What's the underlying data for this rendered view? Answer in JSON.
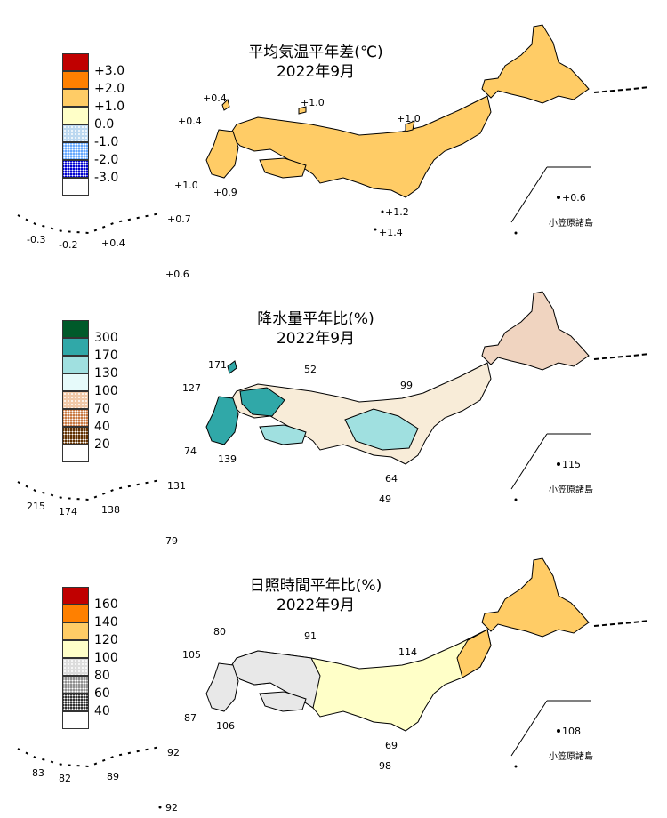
{
  "inset_label": "小笠原諸島",
  "panels": [
    {
      "title": "平均気温平年差(℃)",
      "subtitle": "2022年9月",
      "legend": [
        {
          "label": "+3.0",
          "color": "#c00000",
          "pattern": "solid"
        },
        {
          "label": "+2.0",
          "color": "#ff8000",
          "pattern": "solid"
        },
        {
          "label": "+1.0",
          "color": "#ffcc66",
          "pattern": "solid"
        },
        {
          "label": "0.0",
          "color": "#ffffc8",
          "pattern": "solid"
        },
        {
          "label": "-1.0",
          "color": "#bcd8f0",
          "pattern": "dots-light"
        },
        {
          "label": "-2.0",
          "color": "#66a8ff",
          "pattern": "dots-medium"
        },
        {
          "label": "-3.0",
          "color": "#0000d0",
          "pattern": "dots-dense"
        },
        {
          "label": "",
          "color": "",
          "pattern": "none"
        }
      ],
      "station_values": [
        "+0.4",
        "+1.0",
        "+0.4",
        "+1.0",
        "+1.0",
        "+0.9",
        "+1.2",
        "+1.4",
        "+0.6",
        "-0.3",
        "-0.2",
        "+0.4",
        "+0.7",
        "+0.6"
      ]
    },
    {
      "title": "降水量平年比(%)",
      "subtitle": "2022年9月",
      "legend": [
        {
          "label": "300",
          "color": "#005a2a",
          "pattern": "solid"
        },
        {
          "label": "170",
          "color": "#30a8a8",
          "pattern": "solid"
        },
        {
          "label": "130",
          "color": "#a0e0e0",
          "pattern": "solid"
        },
        {
          "label": "100",
          "color": "#e6fafa",
          "pattern": "solid"
        },
        {
          "label": "70",
          "color": "#f0c8a8",
          "pattern": "dots-light"
        },
        {
          "label": "40",
          "color": "#c87840",
          "pattern": "dots-medium"
        },
        {
          "label": "20",
          "color": "#603000",
          "pattern": "dots-dense"
        },
        {
          "label": "",
          "color": "",
          "pattern": "none"
        }
      ],
      "station_values": [
        "171",
        "52",
        "127",
        "99",
        "74",
        "139",
        "64",
        "49",
        "115",
        "215",
        "174",
        "138",
        "131",
        "79"
      ]
    },
    {
      "title": "日照時間平年比(%)",
      "subtitle": "2022年9月",
      "legend": [
        {
          "label": "160",
          "color": "#c00000",
          "pattern": "solid"
        },
        {
          "label": "140",
          "color": "#ff8000",
          "pattern": "solid"
        },
        {
          "label": "120",
          "color": "#ffcc66",
          "pattern": "solid"
        },
        {
          "label": "100",
          "color": "#ffffc8",
          "pattern": "solid"
        },
        {
          "label": "80",
          "color": "#dcdcdc",
          "pattern": "dots-light"
        },
        {
          "label": "60",
          "color": "#909090",
          "pattern": "dots-medium"
        },
        {
          "label": "40",
          "color": "#303030",
          "pattern": "dots-dense"
        },
        {
          "label": "",
          "color": "",
          "pattern": "none"
        }
      ],
      "station_values": [
        "80",
        "91",
        "105",
        "114",
        "87",
        "106",
        "69",
        "98",
        "108",
        "83",
        "82",
        "89",
        "92",
        "92"
      ]
    }
  ]
}
